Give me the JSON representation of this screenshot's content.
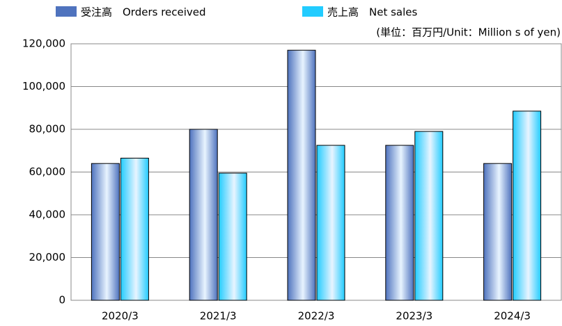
{
  "chart_data": {
    "type": "bar",
    "annotation": "(単位：百万円/Unit：Million s  of yen)",
    "categories": [
      "2020/3",
      "2021/3",
      "2022/3",
      "2023/3",
      "2024/3"
    ],
    "series": [
      {
        "name": "受注高　Orders received",
        "color": "#4f73be",
        "values": [
          64000,
          80000,
          117000,
          72500,
          64000
        ]
      },
      {
        "name": "売上高　Net sales",
        "color": "#22ccff",
        "values": [
          66500,
          59500,
          72500,
          79000,
          88500
        ]
      }
    ],
    "ylim": [
      0,
      120000
    ],
    "yticks": [
      0,
      {
        "value": 20000,
        "label": "20,000"
      },
      {
        "value": 40000,
        "label": "40,000"
      },
      {
        "value": 60000,
        "label": "60,000"
      },
      {
        "value": 80000,
        "label": "80,000"
      },
      {
        "value": 100000,
        "label": "100,000"
      },
      {
        "value": 120000,
        "label": "120,000"
      }
    ],
    "grid": true
  }
}
